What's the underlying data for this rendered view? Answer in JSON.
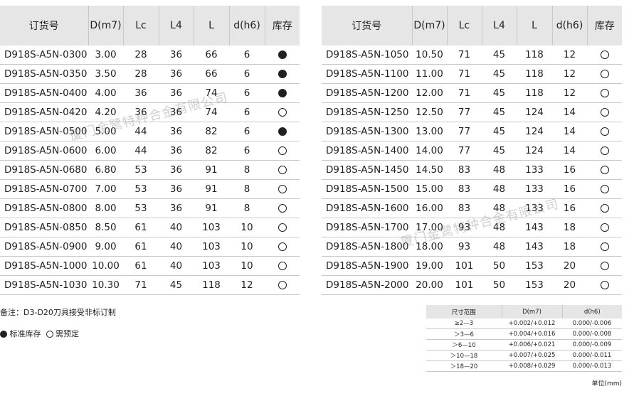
{
  "headers": [
    "订货号",
    "D(m7)",
    "Lc",
    "L4",
    "L",
    "d(h6)",
    "库存"
  ],
  "left_rows": [
    [
      "D918S-A5N-0300",
      "3.00",
      "28",
      "36",
      "66",
      "6",
      "stock"
    ],
    [
      "D918S-A5N-0350",
      "3.50",
      "28",
      "36",
      "66",
      "6",
      "stock"
    ],
    [
      "D918S-A5N-0400",
      "4.00",
      "36",
      "36",
      "74",
      "6",
      "stock"
    ],
    [
      "D918S-A5N-0420",
      "4.20",
      "36",
      "36",
      "74",
      "6",
      "order"
    ],
    [
      "D918S-A5N-0500",
      "5.00",
      "44",
      "36",
      "82",
      "6",
      "stock"
    ],
    [
      "D918S-A5N-0600",
      "6.00",
      "44",
      "36",
      "82",
      "6",
      "order"
    ],
    [
      "D918S-A5N-0680",
      "6.80",
      "53",
      "36",
      "91",
      "8",
      "order"
    ],
    [
      "D918S-A5N-0700",
      "7.00",
      "53",
      "36",
      "91",
      "8",
      "order"
    ],
    [
      "D918S-A5N-0800",
      "8.00",
      "53",
      "36",
      "91",
      "8",
      "order"
    ],
    [
      "D918S-A5N-0850",
      "8.50",
      "61",
      "40",
      "103",
      "10",
      "order"
    ],
    [
      "D918S-A5N-0900",
      "9.00",
      "61",
      "40",
      "103",
      "10",
      "order"
    ],
    [
      "D918S-A5N-1000",
      "10.00",
      "61",
      "40",
      "103",
      "10",
      "order"
    ],
    [
      "D918S-A5N-1030",
      "10.30",
      "71",
      "45",
      "118",
      "12",
      "order"
    ]
  ],
  "right_rows": [
    [
      "D918S-A5N-1050",
      "10.50",
      "71",
      "45",
      "118",
      "12",
      "order"
    ],
    [
      "D918S-A5N-1100",
      "11.00",
      "71",
      "45",
      "118",
      "12",
      "order"
    ],
    [
      "D918S-A5N-1200",
      "12.00",
      "71",
      "45",
      "118",
      "12",
      "order"
    ],
    [
      "D918S-A5N-1250",
      "12.50",
      "77",
      "45",
      "124",
      "14",
      "order"
    ],
    [
      "D918S-A5N-1300",
      "13.00",
      "77",
      "45",
      "124",
      "14",
      "order"
    ],
    [
      "D918S-A5N-1400",
      "14.00",
      "77",
      "45",
      "124",
      "14",
      "order"
    ],
    [
      "D918S-A5N-1450",
      "14.50",
      "83",
      "48",
      "133",
      "16",
      "order"
    ],
    [
      "D918S-A5N-1500",
      "15.00",
      "83",
      "48",
      "133",
      "16",
      "order"
    ],
    [
      "D918S-A5N-1600",
      "16.00",
      "83",
      "48",
      "133",
      "16",
      "order"
    ],
    [
      "D918S-A5N-1700",
      "17.00",
      "93",
      "48",
      "143",
      "18",
      "order"
    ],
    [
      "D918S-A5N-1800",
      "18.00",
      "93",
      "48",
      "143",
      "18",
      "order"
    ],
    [
      "D918S-A5N-1900",
      "19.00",
      "101",
      "50",
      "153",
      "20",
      "order"
    ],
    [
      "D918S-A5N-2000",
      "20.00",
      "101",
      "50",
      "153",
      "20",
      "order"
    ]
  ],
  "notes": {
    "remark": "备注：D3-D20刀具接受非标订制",
    "stock_label": "标准库存",
    "order_label": "需预定"
  },
  "tolerance": {
    "headers": [
      "尺寸范围",
      "D(m7)",
      "d(h6)"
    ],
    "rows": [
      [
        "≥2—3",
        "+0.002/+0.012",
        "0.000/-0.006"
      ],
      [
        "＞3—6",
        "+0.004/+0.016",
        "0.000/-0.008"
      ],
      [
        "＞6—10",
        "+0.006/+0.021",
        "0.000/-0.009"
      ],
      [
        "＞10—18",
        "+0.007/+0.025",
        "0.000/-0.011"
      ],
      [
        "＞18—20",
        "+0.008/+0.029",
        "0.000/-0.013"
      ]
    ],
    "unit": "单位(mm)"
  },
  "watermark": "厦门金鹭特种合金有限公司"
}
